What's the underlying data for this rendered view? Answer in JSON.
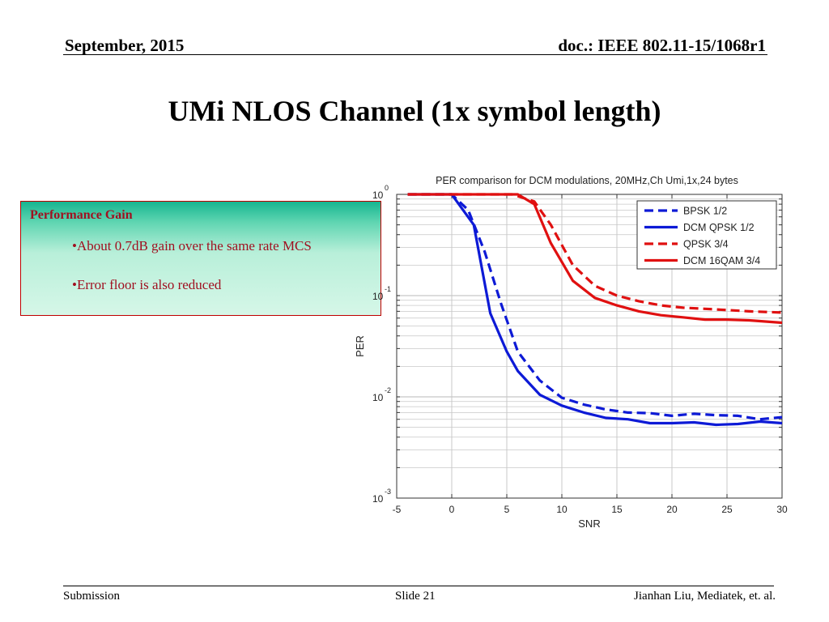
{
  "header": {
    "date": "September, 2015",
    "doc": "doc.: IEEE 802.11-15/1068r1"
  },
  "slide_title": "UMi NLOS Channel (1x symbol length)",
  "gain_box": {
    "title": "Performance Gain",
    "bullet1": "•About 0.7dB gain over the same rate MCS",
    "bullet2": "•Error floor  is also reduced"
  },
  "footer": {
    "left": "Submission",
    "center": "Slide 21",
    "right": "Jianhan Liu,  Mediatek, et. al."
  },
  "colors": {
    "blue": "#0d1ad6",
    "red": "#e01010",
    "grid": "#c8c8c8"
  },
  "chart_data": {
    "type": "line",
    "title": "PER comparison for DCM modulations, 20MHz,Ch Umi,1x,24 bytes",
    "xlabel": "SNR",
    "ylabel": "PER",
    "xlim": [
      -5,
      30
    ],
    "ylim_log10": [
      -3,
      0
    ],
    "y_scale": "log",
    "xticks": [
      -5,
      0,
      5,
      10,
      15,
      20,
      25,
      30
    ],
    "xtick_labels": [
      "-5",
      "0",
      "5",
      "10",
      "15",
      "20",
      "25",
      "30"
    ],
    "yticks": [
      {
        "base": "10",
        "exp": "0",
        "value": 1
      },
      {
        "base": "10",
        "exp": "-1",
        "value": 0.1
      },
      {
        "base": "10",
        "exp": "-2",
        "value": 0.01
      },
      {
        "base": "10",
        "exp": "-3",
        "value": 0.001
      }
    ],
    "grid": true,
    "legend_position": "top-right",
    "series": [
      {
        "name": "BPSK 1/2",
        "color": "#0d1ad6",
        "dash": true,
        "x": [
          -4,
          0,
          1.5,
          3,
          4.5,
          6,
          8,
          10,
          12,
          14,
          16,
          18,
          20,
          22,
          24,
          26,
          28,
          30
        ],
        "y": [
          1,
          1,
          0.7,
          0.27,
          0.082,
          0.028,
          0.0145,
          0.0098,
          0.0084,
          0.0075,
          0.007,
          0.0069,
          0.0065,
          0.0068,
          0.0066,
          0.0065,
          0.006,
          0.0063
        ]
      },
      {
        "name": "DCM QPSK 1/2",
        "color": "#0d1ad6",
        "dash": false,
        "x": [
          -4,
          0,
          2,
          3.5,
          5,
          6,
          8,
          10,
          12,
          14,
          16,
          18,
          20,
          22,
          24,
          26,
          28,
          30
        ],
        "y": [
          1,
          1,
          0.5,
          0.067,
          0.028,
          0.018,
          0.0105,
          0.0082,
          0.007,
          0.0062,
          0.006,
          0.0055,
          0.0055,
          0.0056,
          0.0053,
          0.0054,
          0.0057,
          0.0055
        ]
      },
      {
        "name": "QPSK 3/4",
        "color": "#e01010",
        "dash": true,
        "x": [
          -4,
          5.5,
          7.5,
          9,
          11,
          13,
          15,
          17,
          19,
          21,
          23,
          25,
          27,
          30
        ],
        "y": [
          1,
          1,
          0.85,
          0.5,
          0.2,
          0.125,
          0.1,
          0.088,
          0.08,
          0.076,
          0.074,
          0.072,
          0.07,
          0.068
        ]
      },
      {
        "name": "DCM 16QAM 3/4",
        "color": "#e01010",
        "dash": false,
        "x": [
          -4,
          6,
          7.5,
          9,
          11,
          13,
          15,
          17,
          19,
          21,
          23,
          25,
          27,
          30
        ],
        "y": [
          1,
          1,
          0.8,
          0.33,
          0.14,
          0.095,
          0.08,
          0.07,
          0.064,
          0.061,
          0.058,
          0.058,
          0.057,
          0.054
        ]
      }
    ]
  }
}
